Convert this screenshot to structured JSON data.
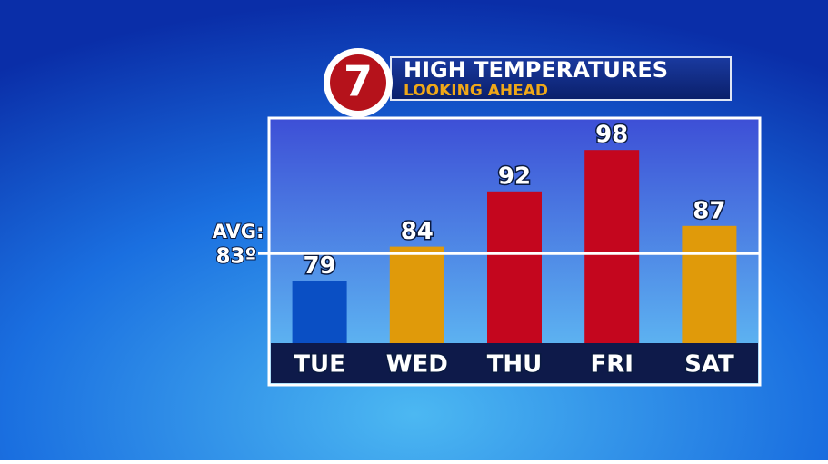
{
  "chart_data": {
    "type": "bar",
    "title": "HIGH TEMPERATURES",
    "subtitle": "LOOKING AHEAD",
    "logo": "7",
    "categories": [
      "TUE",
      "WED",
      "THU",
      "FRI",
      "SAT"
    ],
    "values": [
      79,
      84,
      92,
      98,
      87
    ],
    "colors": [
      "#0a4fc4",
      "#e09a0a",
      "#c4061e",
      "#c4061e",
      "#e09a0a"
    ],
    "ylim": [
      70,
      100
    ],
    "average": {
      "label": "AVG:",
      "value": 83,
      "value_label": "83º"
    }
  }
}
